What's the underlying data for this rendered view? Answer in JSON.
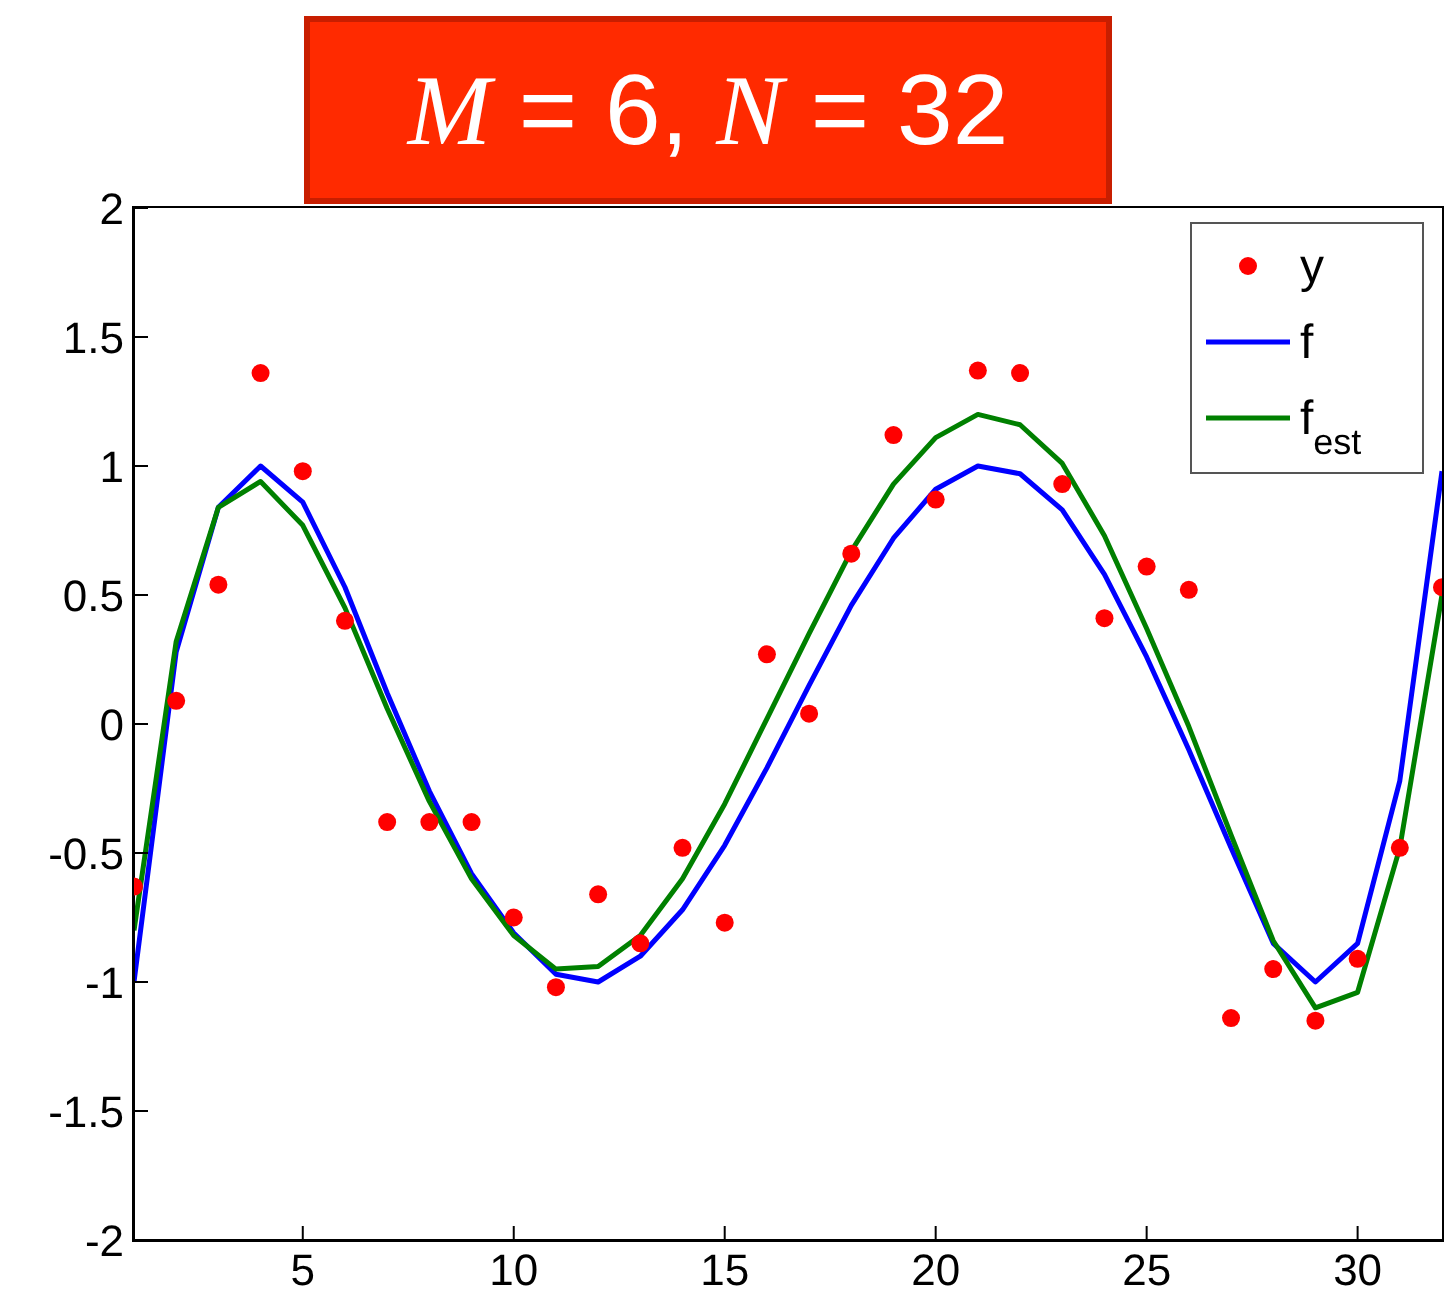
{
  "chart_data": {
    "type": "line",
    "title": "M = 6, N = 32",
    "x": [
      1,
      2,
      3,
      4,
      5,
      6,
      7,
      8,
      9,
      10,
      11,
      12,
      13,
      14,
      15,
      16,
      17,
      18,
      19,
      20,
      21,
      22,
      23,
      24,
      25,
      26,
      27,
      28,
      29,
      30,
      31,
      32
    ],
    "series": [
      {
        "name": "y",
        "type": "scatter",
        "marker": "circle",
        "color": "#ff0000",
        "values": [
          -0.63,
          0.09,
          0.54,
          1.36,
          0.98,
          0.4,
          -0.38,
          -0.38,
          -0.38,
          -0.75,
          -1.02,
          -0.66,
          -0.85,
          -0.48,
          -0.77,
          0.27,
          0.04,
          0.66,
          1.12,
          0.87,
          1.37,
          1.36,
          0.93,
          0.41,
          0.61,
          0.52,
          -1.14,
          -0.95,
          -1.15,
          -0.91,
          -0.48,
          0.53
        ]
      },
      {
        "name": "f",
        "color": "#0000ff",
        "values": [
          -1.0,
          0.28,
          0.84,
          1.0,
          0.86,
          0.53,
          0.12,
          -0.26,
          -0.58,
          -0.81,
          -0.97,
          -1.0,
          -0.9,
          -0.72,
          -0.47,
          -0.17,
          0.15,
          0.46,
          0.72,
          0.91,
          1.0,
          0.97,
          0.83,
          0.58,
          0.26,
          -0.1,
          -0.48,
          -0.85,
          -1.0,
          -0.85,
          -0.22,
          0.98
        ]
      },
      {
        "name": "f$_{est}$",
        "color": "#008000",
        "values": [
          -0.8,
          0.32,
          0.84,
          0.94,
          0.77,
          0.45,
          0.06,
          -0.3,
          -0.6,
          -0.82,
          -0.95,
          -0.94,
          -0.82,
          -0.6,
          -0.31,
          0.02,
          0.35,
          0.67,
          0.93,
          1.11,
          1.2,
          1.16,
          1.01,
          0.73,
          0.37,
          -0.01,
          -0.43,
          -0.84,
          -1.1,
          -1.04,
          -0.48,
          0.5
        ]
      }
    ],
    "xlim": [
      1,
      32
    ],
    "xticks": [
      5,
      10,
      15,
      20,
      25,
      30
    ],
    "ylim": [
      -2,
      2
    ],
    "yticks": [
      -2,
      -1.5,
      -1,
      -0.5,
      0,
      0.5,
      1,
      1.5,
      2
    ],
    "grid": false,
    "legend": "top right",
    "line_style": "solid"
  }
}
